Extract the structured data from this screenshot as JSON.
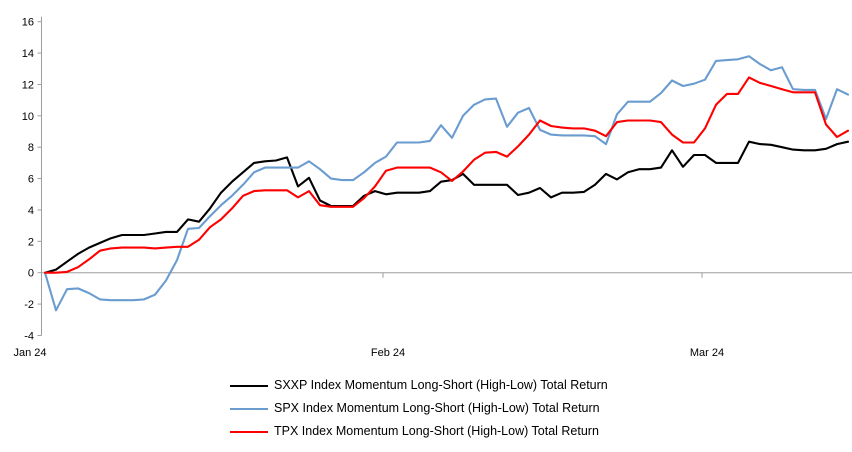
{
  "chart": {
    "background": "#FFFFFF",
    "axis_color": "#9E9E9E",
    "text_color": "#000000",
    "axis_font_px": 11,
    "y_axis": {
      "min": -4,
      "max": 16,
      "step": 2,
      "tick_labels": [
        "16",
        "14",
        "12",
        "10",
        "8",
        "6",
        "4",
        "2",
        "0",
        "-2",
        "-4"
      ]
    },
    "x_ticks": [
      {
        "label": "Jan 24",
        "day": 0
      },
      {
        "label": "Feb 24",
        "day": 31
      },
      {
        "label": "Mar 24",
        "day": 60
      }
    ]
  },
  "chart_data": {
    "type": "line",
    "title": "",
    "xlabel": "",
    "ylabel": "",
    "ylim": [
      -4,
      16
    ],
    "grid": "zero-line-only",
    "legend_position": "bottom-left",
    "x_description": "daily points, day index 0 = Jan 24 start, 31 = Feb 24, 60 = Mar 24",
    "total_points": 74,
    "series": [
      {
        "name": "SXXP Index Momentum Long-Short (High-Low) Total Return",
        "color": "#000000",
        "values": [
          0,
          0.2,
          0.7,
          1.2,
          1.6,
          1.9,
          2.2,
          2.4,
          2.4,
          2.4,
          2.5,
          2.6,
          2.6,
          3.4,
          3.25,
          4.1,
          5.1,
          5.8,
          6.4,
          7.0,
          7.1,
          7.15,
          7.35,
          5.5,
          6.05,
          4.6,
          4.25,
          4.25,
          4.25,
          4.9,
          5.2,
          5.0,
          5.1,
          5.1,
          5.1,
          5.2,
          5.8,
          5.9,
          6.3,
          5.6,
          5.6,
          5.6,
          5.6,
          4.95,
          5.1,
          5.4,
          4.8,
          5.1,
          5.1,
          5.15,
          5.6,
          6.3,
          5.95,
          6.4,
          6.6,
          6.6,
          6.7,
          7.8,
          6.75,
          7.5,
          7.5,
          7.0,
          7.0,
          7.0,
          8.35,
          8.2,
          8.15,
          8.0,
          7.85,
          7.8,
          7.8,
          7.9,
          8.2,
          8.35
        ]
      },
      {
        "name": "SPX Index Momentum Long-Short (High-Low) Total Return",
        "color": "#6A9CD0",
        "values": [
          0,
          -2.4,
          -1.05,
          -1.0,
          -1.3,
          -1.7,
          -1.75,
          -1.75,
          -1.75,
          -1.7,
          -1.4,
          -0.5,
          0.8,
          2.8,
          2.85,
          3.6,
          4.3,
          4.9,
          5.6,
          6.4,
          6.7,
          6.7,
          6.7,
          6.7,
          7.1,
          6.6,
          6.0,
          5.9,
          5.9,
          6.4,
          7.0,
          7.4,
          8.3,
          8.3,
          8.3,
          8.4,
          9.4,
          8.6,
          10.0,
          10.7,
          11.05,
          11.1,
          9.3,
          10.2,
          10.5,
          9.1,
          8.8,
          8.75,
          8.75,
          8.75,
          8.7,
          8.2,
          10.1,
          10.9,
          10.9,
          10.9,
          11.45,
          12.25,
          11.9,
          12.05,
          12.3,
          13.5,
          13.55,
          13.6,
          13.8,
          13.3,
          12.9,
          13.1,
          11.7,
          11.65,
          11.65,
          9.8,
          11.7,
          11.35
        ]
      },
      {
        "name": "TPX Index Momentum Long-Short (High-Low) Total Return",
        "color": "#FF0000",
        "values": [
          0,
          0,
          0.05,
          0.35,
          0.85,
          1.4,
          1.55,
          1.6,
          1.6,
          1.6,
          1.55,
          1.6,
          1.65,
          1.65,
          2.1,
          2.9,
          3.4,
          4.1,
          4.9,
          5.2,
          5.25,
          5.25,
          5.25,
          4.8,
          5.2,
          4.3,
          4.2,
          4.2,
          4.2,
          4.75,
          5.5,
          6.5,
          6.7,
          6.7,
          6.7,
          6.7,
          6.4,
          5.85,
          6.45,
          7.2,
          7.65,
          7.7,
          7.4,
          8.05,
          8.8,
          9.7,
          9.35,
          9.25,
          9.2,
          9.2,
          9.05,
          8.7,
          9.6,
          9.7,
          9.7,
          9.7,
          9.6,
          8.8,
          8.3,
          8.3,
          9.2,
          10.7,
          11.4,
          11.4,
          12.45,
          12.1,
          11.9,
          11.7,
          11.5,
          11.5,
          11.5,
          9.45,
          8.65,
          9.05
        ]
      }
    ]
  }
}
